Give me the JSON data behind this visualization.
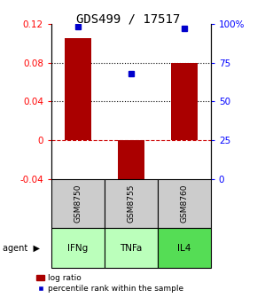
{
  "title": "GDS499 / 17517",
  "samples": [
    "GSM8750",
    "GSM8755",
    "GSM8760"
  ],
  "agents": [
    "IFNg",
    "TNFa",
    "IL4"
  ],
  "log_ratios": [
    0.105,
    -0.046,
    0.08
  ],
  "percentile_ranks": [
    98,
    68,
    97
  ],
  "ylim_left": [
    -0.04,
    0.12
  ],
  "ylim_right": [
    0,
    100
  ],
  "yticks_left": [
    -0.04,
    0,
    0.04,
    0.08,
    0.12
  ],
  "yticks_right": [
    0,
    25,
    50,
    75,
    100
  ],
  "ytick_labels_left": [
    "-0.04",
    "0",
    "0.04",
    "0.08",
    "0.12"
  ],
  "ytick_labels_right": [
    "0",
    "25",
    "50",
    "75",
    "100%"
  ],
  "hlines": [
    0.08,
    0.04
  ],
  "zero_line": 0,
  "bar_color": "#aa0000",
  "dot_color": "#0000cc",
  "agent_colors": [
    "#bbffbb",
    "#bbffbb",
    "#55dd55"
  ],
  "sample_box_color": "#cccccc",
  "bar_width": 0.5,
  "legend_bar_label": "log ratio",
  "legend_dot_label": "percentile rank within the sample",
  "title_fontsize": 10,
  "tick_fontsize": 7.5,
  "label_fontsize": 7
}
